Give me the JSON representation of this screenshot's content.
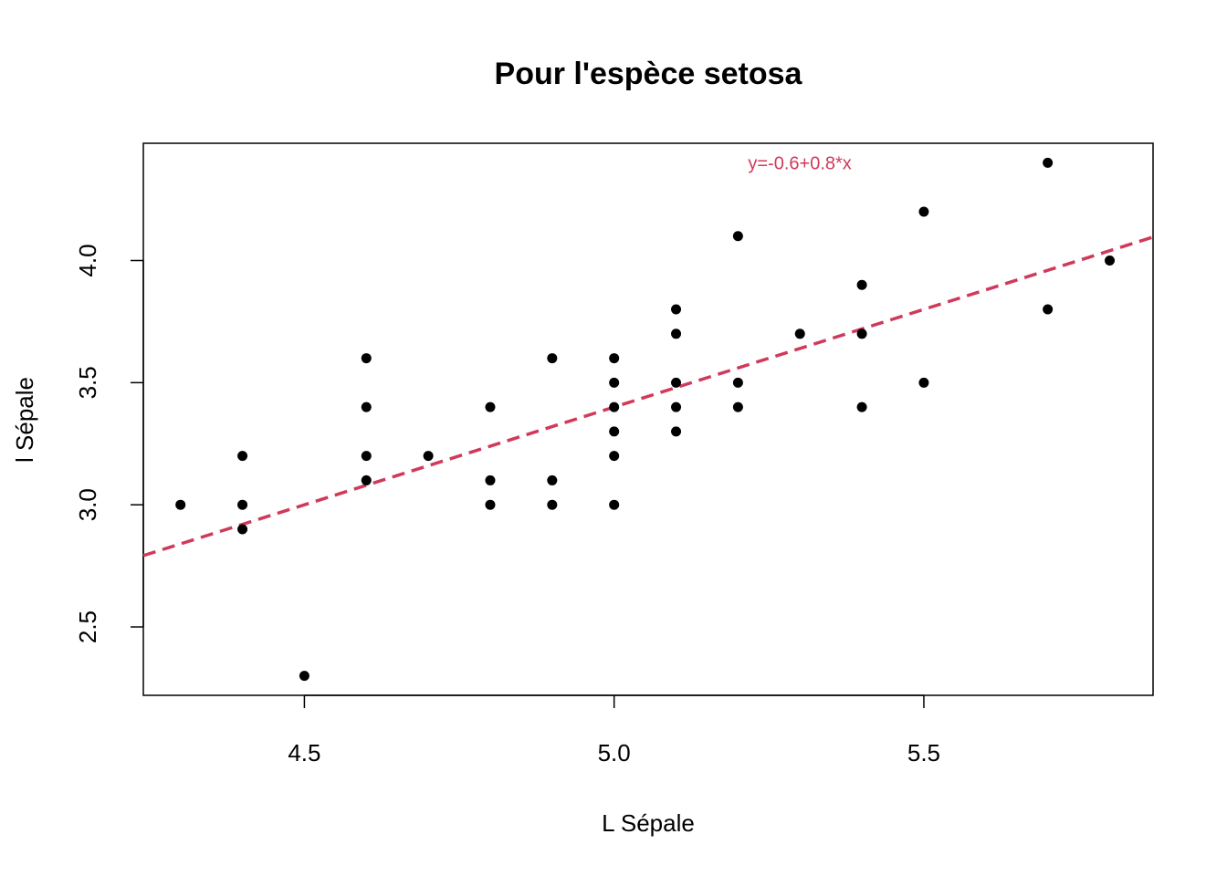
{
  "chart_data": {
    "type": "scatter",
    "title": "Pour l'espèce setosa",
    "xlabel": "L Sépale",
    "ylabel": "l Sépale",
    "xlim": [
      4.24,
      5.87
    ],
    "ylim": [
      2.22,
      4.48
    ],
    "x_ticks": [
      4.5,
      5.0,
      5.5
    ],
    "x_tick_labels": [
      "4.5",
      "5.0",
      "5.5"
    ],
    "y_ticks": [
      2.5,
      3.0,
      3.5,
      4.0
    ],
    "y_tick_labels": [
      "2.5",
      "3.0",
      "3.5",
      "4.0"
    ],
    "grid": false,
    "legend": "none",
    "point_color": "#000000",
    "points": [
      {
        "x": 4.3,
        "y": 3.0
      },
      {
        "x": 4.4,
        "y": 3.2
      },
      {
        "x": 4.4,
        "y": 3.0
      },
      {
        "x": 4.4,
        "y": 2.9
      },
      {
        "x": 4.5,
        "y": 2.3
      },
      {
        "x": 4.6,
        "y": 3.6
      },
      {
        "x": 4.6,
        "y": 3.4
      },
      {
        "x": 4.6,
        "y": 3.2
      },
      {
        "x": 4.6,
        "y": 3.1
      },
      {
        "x": 4.7,
        "y": 3.2
      },
      {
        "x": 4.8,
        "y": 3.4
      },
      {
        "x": 4.8,
        "y": 3.1
      },
      {
        "x": 4.8,
        "y": 3.0
      },
      {
        "x": 4.9,
        "y": 3.6
      },
      {
        "x": 4.9,
        "y": 3.1
      },
      {
        "x": 4.9,
        "y": 3.0
      },
      {
        "x": 5.0,
        "y": 3.6
      },
      {
        "x": 5.0,
        "y": 3.5
      },
      {
        "x": 5.0,
        "y": 3.4
      },
      {
        "x": 5.0,
        "y": 3.3
      },
      {
        "x": 5.0,
        "y": 3.2
      },
      {
        "x": 5.0,
        "y": 3.0
      },
      {
        "x": 5.1,
        "y": 3.8
      },
      {
        "x": 5.1,
        "y": 3.7
      },
      {
        "x": 5.1,
        "y": 3.5
      },
      {
        "x": 5.1,
        "y": 3.4
      },
      {
        "x": 5.1,
        "y": 3.3
      },
      {
        "x": 5.2,
        "y": 4.1
      },
      {
        "x": 5.2,
        "y": 3.5
      },
      {
        "x": 5.2,
        "y": 3.4
      },
      {
        "x": 5.3,
        "y": 3.7
      },
      {
        "x": 5.4,
        "y": 3.9
      },
      {
        "x": 5.4,
        "y": 3.7
      },
      {
        "x": 5.4,
        "y": 3.4
      },
      {
        "x": 5.5,
        "y": 4.2
      },
      {
        "x": 5.5,
        "y": 3.5
      },
      {
        "x": 5.7,
        "y": 4.4
      },
      {
        "x": 5.7,
        "y": 3.8
      },
      {
        "x": 5.8,
        "y": 4.0
      }
    ],
    "regression_line": {
      "intercept": -0.6,
      "slope": 0.8,
      "color": "#d03a5a",
      "style": "dashed"
    },
    "annotation": {
      "text": "y=-0.6+0.8*x",
      "x": 5.4,
      "y": 4.4,
      "color": "#d03a5a"
    }
  }
}
